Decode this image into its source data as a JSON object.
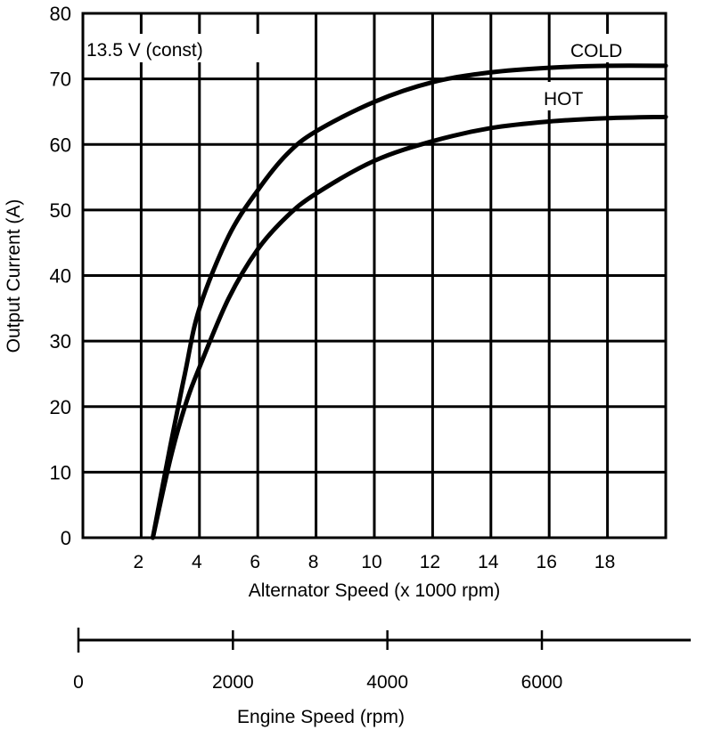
{
  "chart_data": {
    "type": "line",
    "annotation": "13.5 V (const)",
    "xlabel": "Alternator Speed (x 1000 rpm)",
    "ylabel": "Output Current (A)",
    "xlim": [
      0,
      20
    ],
    "ylim": [
      0,
      80
    ],
    "grid": true,
    "x_ticks": [
      2,
      4,
      6,
      8,
      10,
      12,
      14,
      16,
      18
    ],
    "x_tick_labels": [
      "2",
      "4",
      "6",
      "8",
      "10",
      "12",
      "14",
      "16",
      "18"
    ],
    "y_ticks": [
      0,
      10,
      20,
      30,
      40,
      50,
      60,
      70,
      80
    ],
    "y_tick_labels": [
      "0",
      "10",
      "20",
      "30",
      "40",
      "50",
      "60",
      "70",
      "80"
    ],
    "series": [
      {
        "name": "COLD",
        "x": [
          2.4,
          3.0,
          3.5,
          4.0,
          5.0,
          6.0,
          7.0,
          8.0,
          10.0,
          12.0,
          14.0,
          16.0,
          18.0,
          20.0
        ],
        "y": [
          0,
          14,
          25,
          35,
          46,
          53,
          58.5,
          62,
          66.5,
          69.5,
          71,
          71.7,
          72,
          72
        ]
      },
      {
        "name": "HOT",
        "x": [
          2.4,
          3.0,
          3.5,
          4.0,
          5.0,
          6.0,
          7.0,
          8.0,
          10.0,
          12.0,
          14.0,
          16.0,
          18.0,
          20.0
        ],
        "y": [
          0,
          12,
          20,
          26,
          36.5,
          44,
          49,
          52.5,
          57.5,
          60.5,
          62.5,
          63.5,
          64,
          64.2
        ]
      }
    ],
    "secondary_axis": {
      "label": "Engine Speed (rpm)",
      "range": [
        0,
        8000
      ],
      "ticks": [
        0,
        2000,
        4000,
        6000
      ],
      "tick_labels": [
        "0",
        "2000",
        "4000",
        "6000"
      ]
    }
  }
}
